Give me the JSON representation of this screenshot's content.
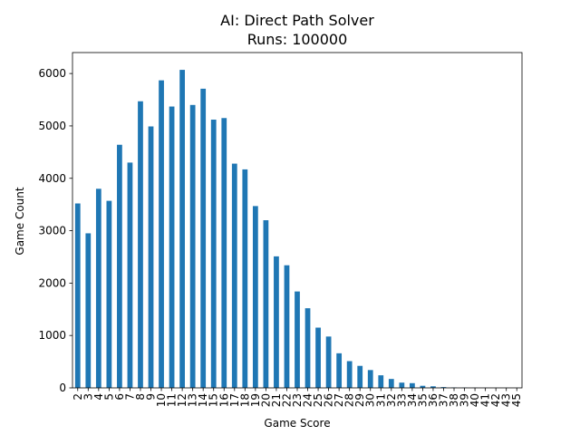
{
  "chart_data": {
    "type": "bar",
    "title": "AI: Direct Path Solver",
    "subtitle": "Runs: 100000",
    "xlabel": "Game Score",
    "ylabel": "Game Count",
    "categories": [
      "2",
      "3",
      "4",
      "5",
      "6",
      "7",
      "8",
      "9",
      "10",
      "11",
      "12",
      "13",
      "14",
      "15",
      "16",
      "17",
      "18",
      "19",
      "20",
      "21",
      "22",
      "23",
      "24",
      "25",
      "26",
      "27",
      "28",
      "29",
      "30",
      "31",
      "32",
      "33",
      "34",
      "35",
      "36",
      "37",
      "38",
      "39",
      "40",
      "41",
      "42",
      "43",
      "45"
    ],
    "values": [
      3520,
      2950,
      3800,
      3570,
      4640,
      4300,
      5470,
      4990,
      5870,
      5370,
      6070,
      5400,
      5710,
      5120,
      5150,
      4280,
      4170,
      3470,
      3200,
      2510,
      2340,
      1840,
      1520,
      1150,
      980,
      660,
      510,
      420,
      340,
      240,
      170,
      100,
      90,
      40,
      30,
      15,
      8,
      5,
      3,
      2,
      1,
      1,
      1
    ],
    "ylim": [
      0,
      6400
    ],
    "yticks": [
      0,
      1000,
      2000,
      3000,
      4000,
      5000,
      6000
    ],
    "bar_color": "#1f77b4",
    "grid": false,
    "legend": "none"
  }
}
